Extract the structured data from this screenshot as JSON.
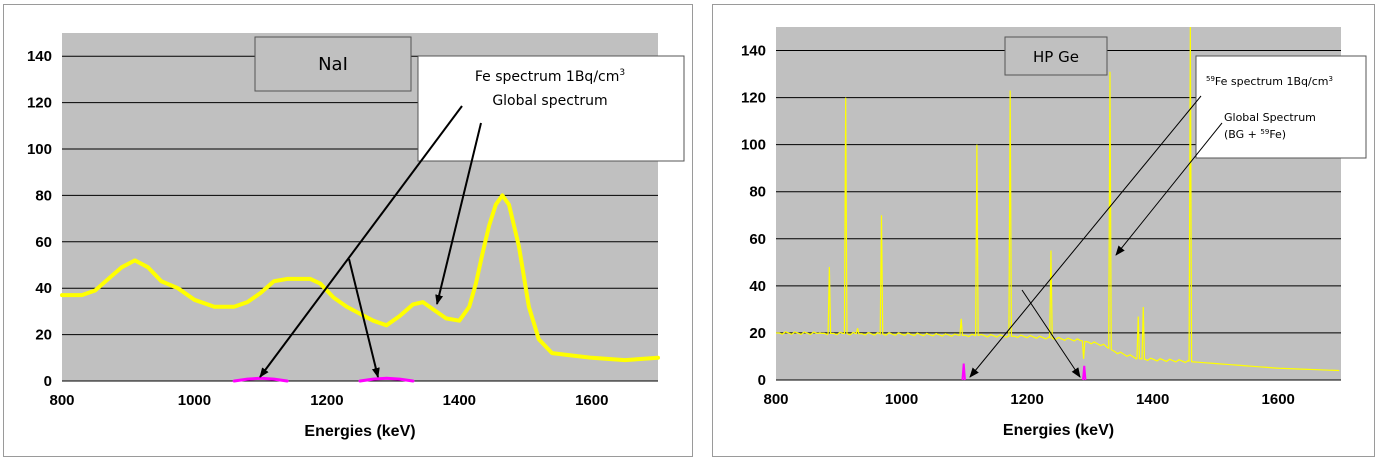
{
  "colors": {
    "plot_background": "#c0c0c0",
    "gridline": "#000000",
    "global_spectrum": "#ffff00",
    "fe_spectrum": "#ff00ff",
    "arrow": "#000000"
  },
  "chart_data": [
    {
      "type": "line",
      "detector_label": "NaI",
      "annotation": {
        "line1": "Fe spectrum 1Bq/cm",
        "line1_sup": "3",
        "line2": "Global spectrum"
      },
      "xlabel": "Energies (keV)",
      "ylabel": "",
      "xlim": [
        800,
        1700
      ],
      "ylim": [
        0,
        150
      ],
      "xticks": [
        800,
        1000,
        1200,
        1400,
        1600
      ],
      "yticks": [
        0,
        20,
        40,
        60,
        80,
        100,
        120,
        140
      ],
      "grid": true,
      "series": [
        {
          "style": "global",
          "x": [
            800,
            830,
            850,
            870,
            890,
            910,
            930,
            950,
            975,
            1000,
            1030,
            1060,
            1080,
            1100,
            1120,
            1140,
            1160,
            1175,
            1190,
            1210,
            1230,
            1250,
            1270,
            1290,
            1310,
            1330,
            1345,
            1360,
            1380,
            1400,
            1415,
            1425,
            1435,
            1445,
            1455,
            1465,
            1475,
            1490,
            1505,
            1520,
            1540,
            1570,
            1600,
            1650,
            1700
          ],
          "y": [
            37,
            37,
            39,
            44,
            49,
            52,
            49,
            43,
            40,
            35,
            32,
            32,
            34,
            38,
            43,
            44,
            44,
            44,
            42,
            36,
            32,
            29,
            26,
            24,
            28,
            33,
            34,
            31,
            27,
            26,
            32,
            42,
            55,
            67,
            76,
            80,
            76,
            58,
            32,
            18,
            12,
            11,
            10,
            9,
            10
          ]
        },
        {
          "style": "fe",
          "x": [
            1060,
            1080,
            1100,
            1120,
            1140
          ],
          "y": [
            0,
            0.8,
            1.2,
            0.8,
            0
          ]
        },
        {
          "style": "fe",
          "x": [
            1250,
            1270,
            1290,
            1310,
            1330
          ],
          "y": [
            0,
            0.8,
            1.2,
            0.8,
            0
          ]
        }
      ]
    },
    {
      "type": "line",
      "detector_label": "HP Ge",
      "annotation": {
        "line1_sup": "59",
        "line1": "Fe spectrum 1Bq/cm",
        "line1_sup2": "3",
        "line2": "Global Spectrum",
        "line3_pre": "(BG + ",
        "line3_sup": "59",
        "line3_post": "Fe)"
      },
      "xlabel": "Energies (keV)",
      "ylabel": "",
      "xlim": [
        800,
        1700
      ],
      "ylim": [
        0,
        150
      ],
      "xticks": [
        800,
        1000,
        1200,
        1400,
        1600
      ],
      "yticks": [
        0,
        20,
        40,
        60,
        80,
        100,
        120,
        140
      ],
      "grid": true,
      "series": [
        {
          "style": "global",
          "baseline": [
            [
              800,
              20
            ],
            [
              1000,
              19.5
            ],
            [
              1100,
              19
            ],
            [
              1200,
              18.5
            ],
            [
              1280,
              17
            ],
            [
              1300,
              16
            ],
            [
              1320,
              15
            ],
            [
              1340,
              12
            ],
            [
              1380,
              9
            ],
            [
              1450,
              8
            ],
            [
              1500,
              7
            ],
            [
              1600,
              5
            ],
            [
              1700,
              4
            ]
          ],
          "peaks": [
            [
              870,
              20
            ],
            [
              885,
              48
            ],
            [
              911,
              120
            ],
            [
              930,
              22
            ],
            [
              968,
              70
            ],
            [
              1095,
              26
            ],
            [
              1120,
              100
            ],
            [
              1173,
              123
            ],
            [
              1238,
              55
            ],
            [
              1290,
              9
            ],
            [
              1332,
              131
            ],
            [
              1377,
              27
            ],
            [
              1385,
              31
            ],
            [
              1460,
              150
            ]
          ]
        },
        {
          "style": "fe",
          "peaks": [
            [
              1099,
              7
            ],
            [
              1291,
              6
            ]
          ]
        }
      ]
    }
  ]
}
